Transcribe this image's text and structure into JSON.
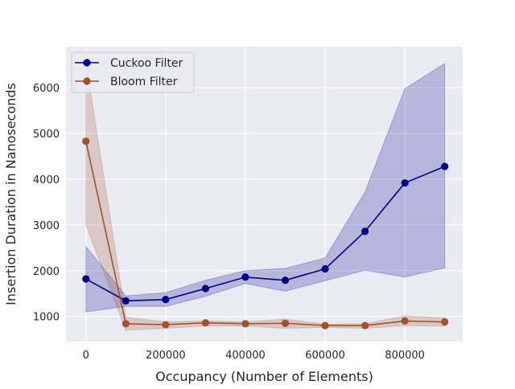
{
  "chart_data": {
    "type": "line",
    "title": "",
    "xlabel": "Occupancy (Number of Elements)",
    "ylabel": "Insertion Duration in Nanoseconds",
    "xlim": [
      -50000,
      945000
    ],
    "ylim": [
      450,
      6900
    ],
    "xticks": [
      0,
      200000,
      400000,
      600000,
      800000
    ],
    "yticks": [
      1000,
      2000,
      3000,
      4000,
      5000,
      6000
    ],
    "grid": true,
    "legend_position": "upper-left",
    "x": [
      0,
      100000,
      200000,
      300000,
      400000,
      500000,
      600000,
      700000,
      800000,
      900000
    ],
    "series": [
      {
        "name": "Cuckoo Filter",
        "color": "#000080",
        "band_color": "#00008b",
        "values": [
          1820,
          1340,
          1370,
          1610,
          1860,
          1790,
          2040,
          2860,
          3920,
          4280
        ],
        "lower": [
          1100,
          1220,
          1220,
          1440,
          1720,
          1550,
          1780,
          2010,
          1860,
          2060
        ],
        "upper": [
          2530,
          1450,
          1520,
          1790,
          2000,
          2050,
          2280,
          3720,
          5980,
          6530
        ]
      },
      {
        "name": "Bloom Filter",
        "color": "#a0522d",
        "band_color": "#a0522d",
        "values": [
          4830,
          840,
          820,
          860,
          840,
          850,
          800,
          800,
          900,
          880
        ],
        "lower": [
          3000,
          700,
          740,
          790,
          790,
          740,
          760,
          740,
          800,
          790
        ],
        "upper": [
          6550,
          980,
          880,
          900,
          880,
          940,
          830,
          840,
          1010,
          970
        ]
      }
    ]
  }
}
